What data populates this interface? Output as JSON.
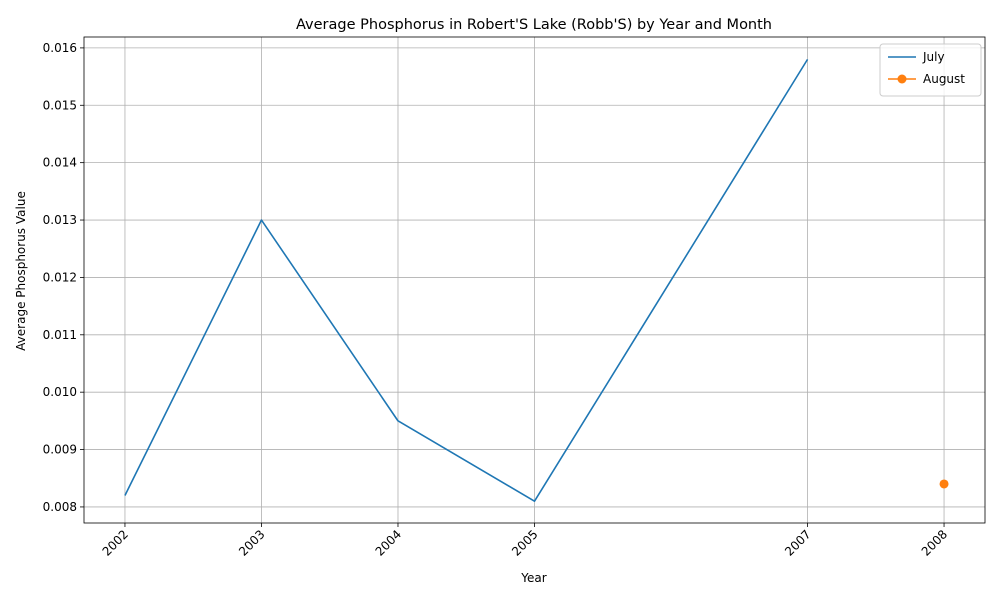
{
  "chart_data": {
    "type": "line",
    "title": "Average Phosphorus in Robert'S Lake (Robb'S) by Year and Month",
    "xlabel": "Year",
    "ylabel": "Average Phosphorus Value",
    "x_ticks": [
      2002,
      2003,
      2004,
      2005,
      2007,
      2008
    ],
    "x_tick_labels": [
      "2002",
      "2003",
      "2004",
      "2005",
      "2007",
      "2008"
    ],
    "xlim": [
      2001.7,
      2008.3
    ],
    "y_ticks": [
      0.008,
      0.009,
      0.01,
      0.011,
      0.012,
      0.013,
      0.014,
      0.015,
      0.016
    ],
    "y_tick_labels": [
      "0.008",
      "0.009",
      "0.010",
      "0.011",
      "0.012",
      "0.013",
      "0.014",
      "0.015",
      "0.016"
    ],
    "ylim": [
      0.00772,
      0.01619
    ],
    "grid": true,
    "legend_position": "upper-right",
    "series": [
      {
        "name": "July",
        "color": "#1f77b4",
        "marker": "none",
        "x": [
          2002,
          2003,
          2004,
          2005,
          2007
        ],
        "y": [
          0.0082,
          0.013,
          0.0095,
          0.0081,
          0.0158
        ]
      },
      {
        "name": "August",
        "color": "#ff7f0e",
        "marker": "circle",
        "x": [
          2008
        ],
        "y": [
          0.0084
        ]
      }
    ]
  }
}
